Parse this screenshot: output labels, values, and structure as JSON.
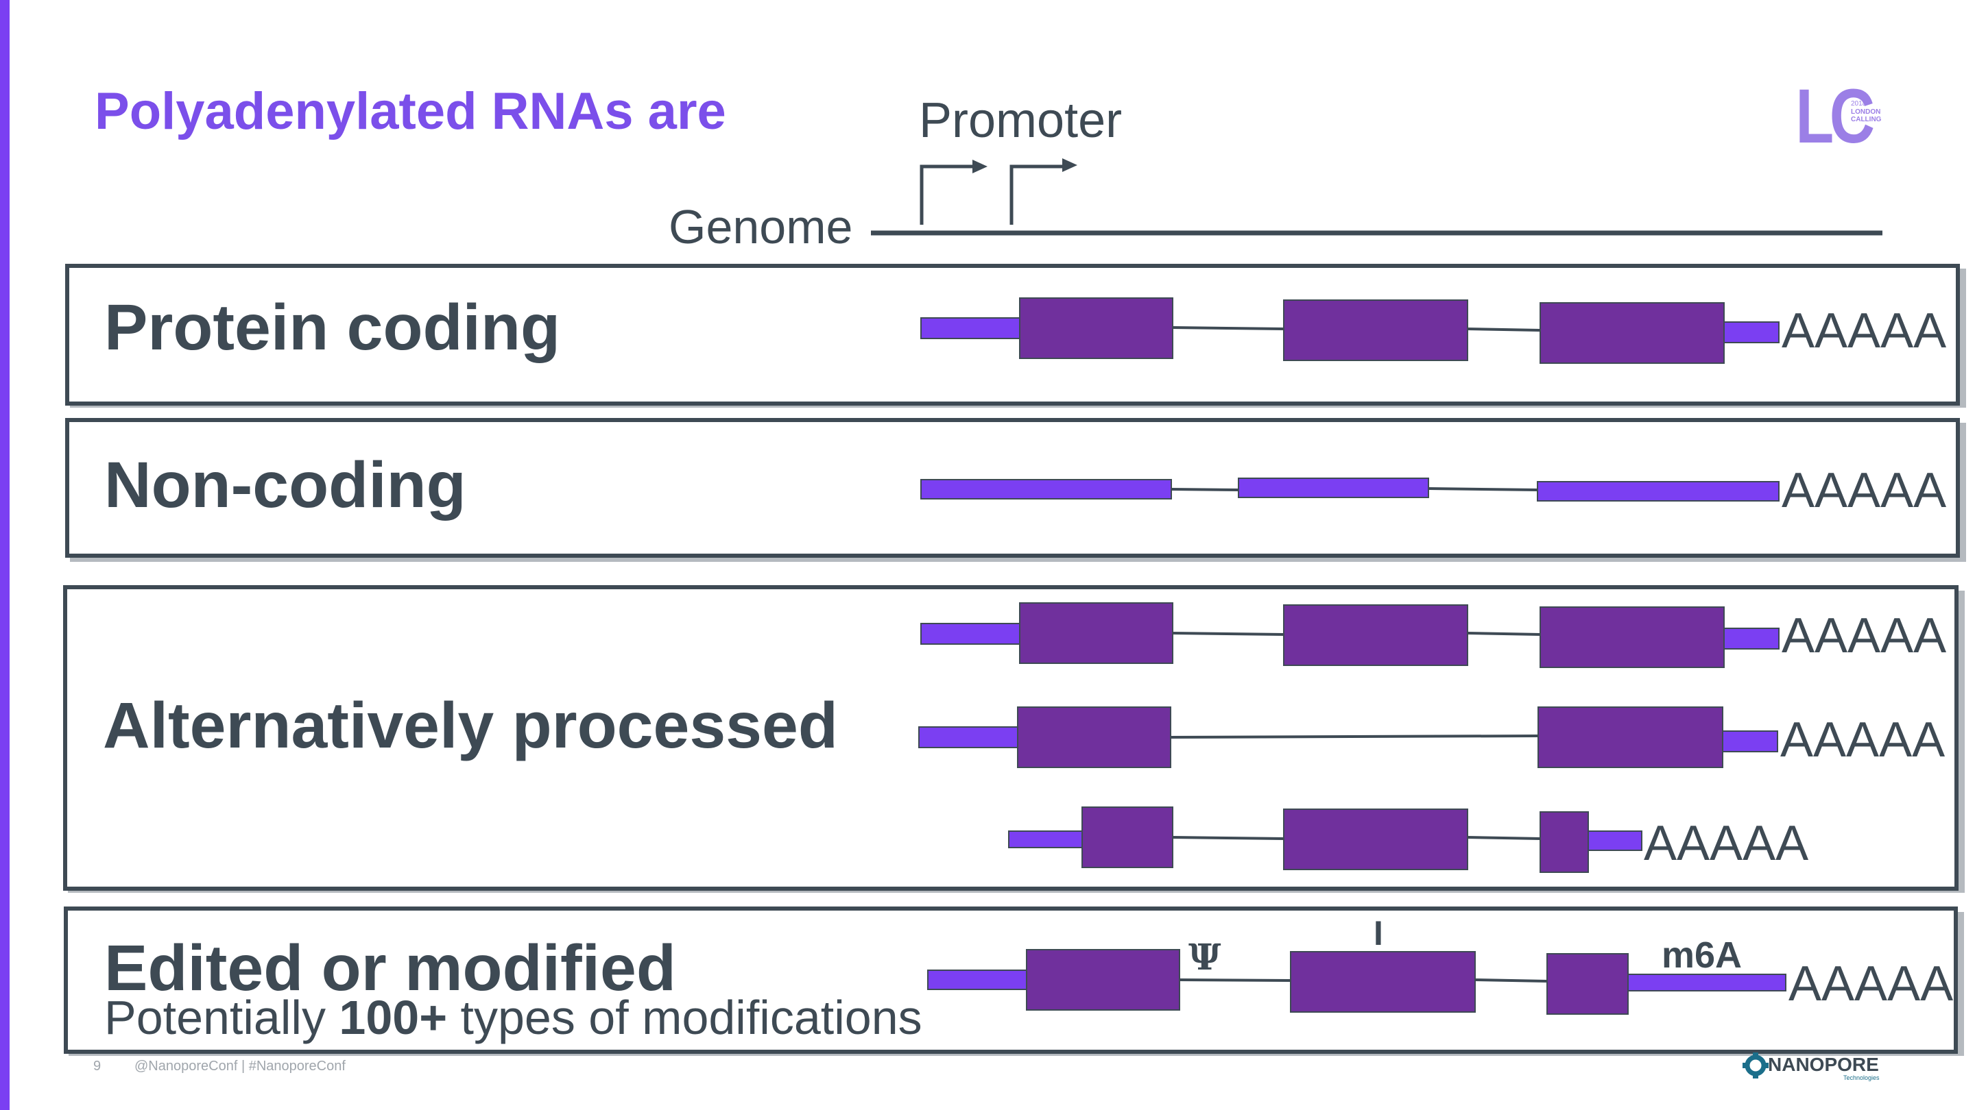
{
  "slide": {
    "title": "Polyadenylated RNAs are",
    "promoter_label": "Promoter",
    "genome_label": "Genome",
    "page_number": "9",
    "footer_handle": "@NanoporeConf | #NanoporeConf"
  },
  "logo_lc": {
    "letters": "LC",
    "year": "2018",
    "line1": "LONDON",
    "line2": "CALLING"
  },
  "logo_nanopore": {
    "name": "NANOPORE",
    "subtitle": "Technologies"
  },
  "categories": {
    "protein_coding": "Protein coding",
    "non_coding": "Non-coding",
    "alternatively_processed": "Alternatively processed",
    "edited_or_modified": "Edited or modified",
    "modifications_note": {
      "prefix": "Potentially ",
      "bold": "100+",
      "suffix": " types of modifications"
    }
  },
  "poly_a_tail": "AAAAA",
  "modification_marks": {
    "psi": "Ψ",
    "inosine": "I",
    "m6a": "m6A"
  },
  "colors": {
    "accent_purple": "#7B3FF2",
    "title_purple": "#7B4FEA",
    "exon_purple": "#70309D",
    "utr_purple": "#7B3FF2",
    "dark_gray": "#3E4A54",
    "border_gray": "#3E4A54",
    "logo_lilac": "#9B7FE6",
    "nanopore_teal": "#1B6E8A"
  },
  "icons": [
    "promoter-arrow-icon",
    "genome-line-icon",
    "lc-logo",
    "nanopore-logo-icon"
  ]
}
